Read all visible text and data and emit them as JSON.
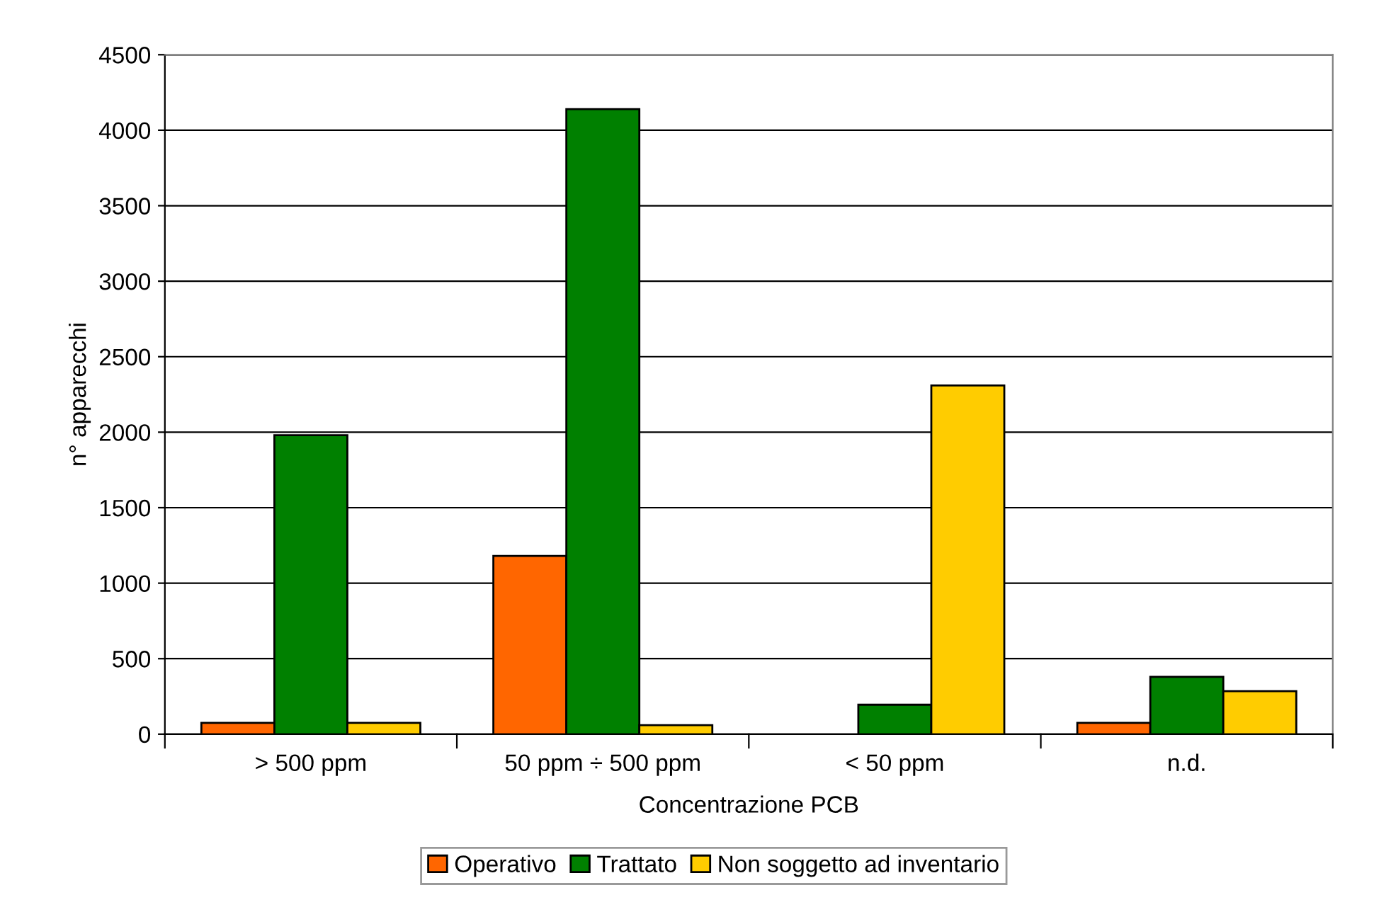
{
  "chart_data": {
    "type": "bar",
    "xlabel": "Concentrazione PCB",
    "ylabel": "n° apparecchi",
    "categories": [
      "> 500 ppm",
      "50 ppm ÷ 500 ppm",
      "< 50 ppm",
      "n.d."
    ],
    "series": [
      {
        "name": "Operativo",
        "color": "#ff6600",
        "values": [
          75,
          1180,
          null,
          75
        ]
      },
      {
        "name": "Trattato",
        "color": "#008000",
        "values": [
          1980,
          4140,
          195,
          380
        ]
      },
      {
        "name": "Non soggetto ad inventario",
        "color": "#ffcc00",
        "values": [
          75,
          60,
          2310,
          285
        ]
      }
    ],
    "ylim": [
      0,
      4500
    ],
    "yticks": [
      0,
      500,
      1000,
      1500,
      2000,
      2500,
      3000,
      3500,
      4000,
      4500
    ],
    "grid": "y",
    "legend": "bottom"
  }
}
